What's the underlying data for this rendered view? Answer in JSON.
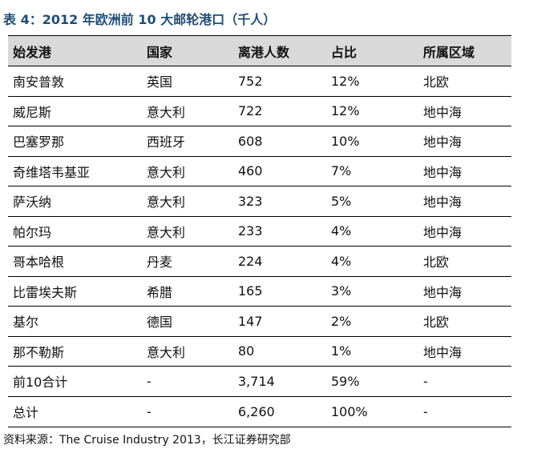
{
  "title": "表 4：2012 年欧洲前 10 大邮轮港口（千人）",
  "columns": [
    "始发港",
    "国家",
    "离港人数",
    "占比",
    "所属区域"
  ],
  "rows": [
    [
      "南安普敦",
      "英国",
      "752",
      "12%",
      "北欧"
    ],
    [
      "威尼斯",
      "意大利",
      "722",
      "12%",
      "地中海"
    ],
    [
      "巴塞罗那",
      "西班牙",
      "608",
      "10%",
      "地中海"
    ],
    [
      "奇维塔韦基亚",
      "意大利",
      "460",
      "7%",
      "地中海"
    ],
    [
      "萨沃纳",
      "意大利",
      "323",
      "5%",
      "地中海"
    ],
    [
      "帕尔玛",
      "意大利",
      "233",
      "4%",
      "地中海"
    ],
    [
      "哥本哈根",
      "丹麦",
      "224",
      "4%",
      "北欧"
    ],
    [
      "比雷埃夫斯",
      "希腊",
      "165",
      "3%",
      "地中海"
    ],
    [
      "基尔",
      "德国",
      "147",
      "2%",
      "北欧"
    ],
    [
      "那不勒斯",
      "意大利",
      "80",
      "1%",
      "地中海"
    ],
    [
      "前10合计",
      "-",
      "3,714",
      "59%",
      "-"
    ],
    [
      "总计",
      "-",
      "6,260",
      "100%",
      "-"
    ]
  ],
  "source": "资料来源：The Cruise Industry 2013，长江证券研究部",
  "colors": {
    "title": "#1f4e79",
    "header_background": "#d9d9d9"
  }
}
